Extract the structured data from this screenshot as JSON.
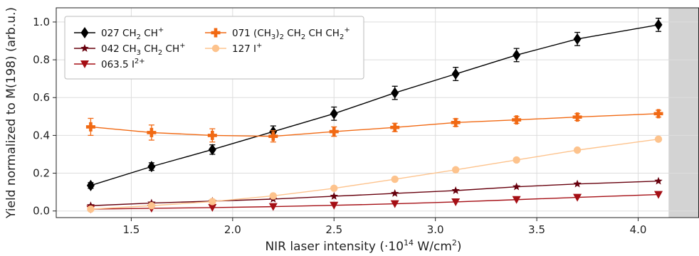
{
  "chart_data": {
    "type": "line",
    "xlabel_main": "NIR laser intensity (·10",
    "xlabel_exp": "14",
    "xlabel_unit": " W/cm",
    "xlabel_unit_exp": "2",
    "xlabel_close": ")",
    "ylabel": "Yield normalized to M(198) (arb.u.)",
    "xlim": [
      1.13,
      4.3
    ],
    "ylim": [
      -0.035,
      1.075
    ],
    "xticks": [
      1.5,
      2.0,
      2.5,
      3.0,
      3.5,
      4.0
    ],
    "xtick_labels": [
      "1.5",
      "2.0",
      "2.5",
      "3.0",
      "3.5",
      "4.0"
    ],
    "yticks": [
      0.0,
      0.2,
      0.4,
      0.6,
      0.8,
      1.0
    ],
    "ytick_labels": [
      "0.0",
      "0.2",
      "0.4",
      "0.6",
      "0.8",
      "1.0"
    ],
    "grid": true,
    "shaded_region_from_x": 4.15,
    "shaded_color": "#d3d3d3",
    "x": [
      1.3,
      1.6,
      1.9,
      2.2,
      2.5,
      2.8,
      3.1,
      3.4,
      3.7,
      4.1
    ],
    "series": [
      {
        "key": "s027",
        "legend": {
          "base": "027 CH",
          "sub1": "2",
          "base2": " CH",
          "sup": "+"
        },
        "color": "#000000",
        "marker": "diamond",
        "values": [
          0.135,
          0.235,
          0.325,
          0.42,
          0.515,
          0.625,
          0.725,
          0.825,
          0.91,
          0.985
        ],
        "errors": [
          0.015,
          0.02,
          0.025,
          0.03,
          0.035,
          0.035,
          0.035,
          0.035,
          0.035,
          0.035
        ]
      },
      {
        "key": "s042",
        "legend": {
          "base": "042 CH",
          "sub1": "3",
          "base2": " CH",
          "sub2": "2",
          "base3": " CH",
          "sup": "+"
        },
        "color": "#67000d",
        "marker": "star",
        "values": [
          0.028,
          0.042,
          0.052,
          0.063,
          0.078,
          0.093,
          0.108,
          0.128,
          0.143,
          0.158
        ],
        "errors": [
          0,
          0,
          0,
          0,
          0,
          0,
          0,
          0,
          0,
          0
        ]
      },
      {
        "key": "s063",
        "legend": {
          "base": "063.5 I",
          "sup": "2+"
        },
        "color": "#a50f15",
        "marker": "triangle-down",
        "values": [
          0.01,
          0.014,
          0.018,
          0.023,
          0.03,
          0.038,
          0.048,
          0.06,
          0.072,
          0.087
        ],
        "errors": [
          0,
          0,
          0,
          0,
          0,
          0,
          0,
          0,
          0,
          0
        ]
      },
      {
        "key": "s071",
        "legend": {
          "base": "071 (CH",
          "sub1": "3",
          "base2": ")",
          "sub2": "2",
          "base3": " CH",
          "sub3": "2",
          "base4": " CH CH",
          "sub4": "2",
          "sup": "+"
        },
        "color": "#f16913",
        "marker": "plus",
        "values": [
          0.445,
          0.415,
          0.4,
          0.395,
          0.42,
          0.442,
          0.468,
          0.482,
          0.497,
          0.515
        ],
        "errors": [
          0.045,
          0.04,
          0.035,
          0.03,
          0.025,
          0.022,
          0.02,
          0.018,
          0.018,
          0.018
        ]
      },
      {
        "key": "s127",
        "legend": {
          "base": "127 I",
          "sup": "+"
        },
        "color": "#fdc38d",
        "marker": "circle",
        "values": [
          0.01,
          0.028,
          0.05,
          0.08,
          0.12,
          0.168,
          0.218,
          0.27,
          0.322,
          0.38
        ],
        "errors": [
          0,
          0,
          0,
          0,
          0,
          0,
          0,
          0,
          0,
          0
        ]
      }
    ],
    "legend_location": "upper-left"
  }
}
